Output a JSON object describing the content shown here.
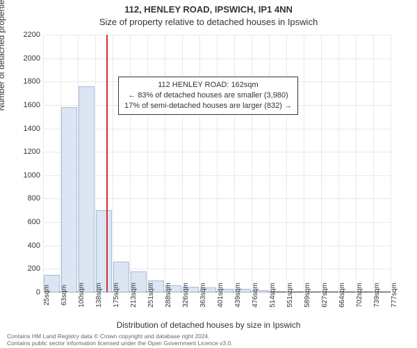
{
  "title_main": "112, HENLEY ROAD, IPSWICH, IP1 4NN",
  "title_sub": "Size of property relative to detached houses in Ipswich",
  "y_label": "Number of detached properties",
  "x_label": "Distribution of detached houses by size in Ipswich",
  "chart": {
    "type": "histogram",
    "ylim": [
      0,
      2200
    ],
    "ytick_step": 200,
    "yticks": [
      0,
      200,
      400,
      600,
      800,
      1000,
      1200,
      1400,
      1600,
      1800,
      2000,
      2200
    ],
    "xticks": [
      "25sqm",
      "63sqm",
      "100sqm",
      "138sqm",
      "175sqm",
      "213sqm",
      "251sqm",
      "288sqm",
      "326sqm",
      "363sqm",
      "401sqm",
      "439sqm",
      "476sqm",
      "514sqm",
      "551sqm",
      "589sqm",
      "627sqm",
      "664sqm",
      "702sqm",
      "739sqm",
      "777sqm"
    ],
    "bar_values": [
      150,
      1580,
      1760,
      700,
      260,
      180,
      100,
      60,
      50,
      40,
      30,
      30,
      20,
      0,
      0,
      0,
      0,
      0,
      0,
      0
    ],
    "bar_fill": "#dbe5f4",
    "bar_stroke": "#a9b9d8",
    "grid_color": "#e8e8e8",
    "background_color": "#ffffff",
    "axis_color": "#333333",
    "marker_color": "#cc3333",
    "marker_x_sqm": 162,
    "x_min_sqm": 25,
    "x_max_sqm": 777,
    "label_fontsize": 12,
    "tick_fontsize": 11
  },
  "annotation": {
    "line1": "112 HENLEY ROAD: 162sqm",
    "line2": "← 83% of detached houses are smaller (3,980)",
    "line3": "17% of semi-detached houses are larger (832) →"
  },
  "footer": {
    "line1": "Contains HM Land Registry data © Crown copyright and database right 2024.",
    "line2": "Contains public sector information licensed under the Open Government Licence v3.0."
  }
}
